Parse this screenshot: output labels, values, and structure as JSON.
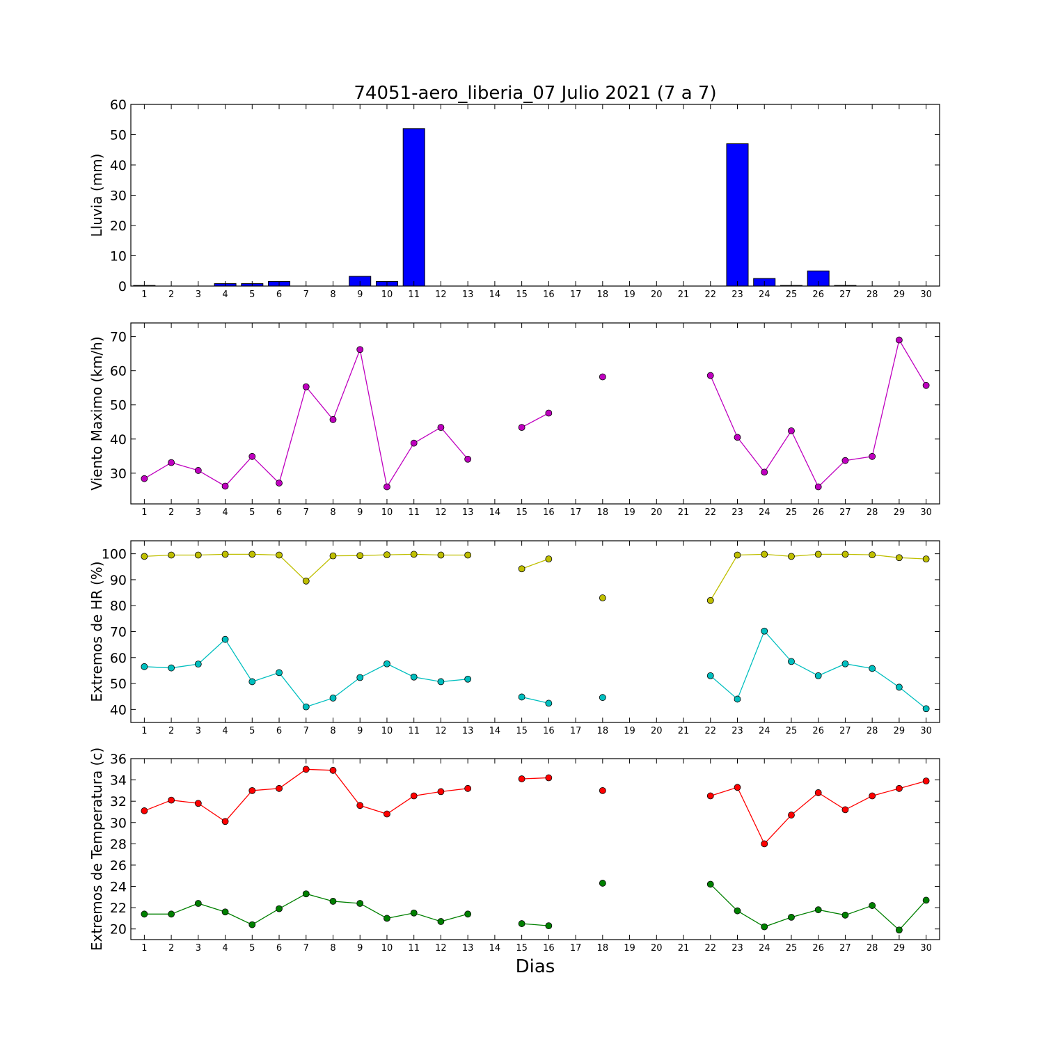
{
  "chart_data": {
    "type": "multi-panel",
    "title": "74051-aero_liberia_07 Julio 2021  (7 a 7)",
    "xlabel": "Dias",
    "x": [
      1,
      2,
      3,
      4,
      5,
      6,
      7,
      8,
      9,
      10,
      11,
      12,
      13,
      14,
      15,
      16,
      17,
      18,
      19,
      20,
      21,
      22,
      23,
      24,
      25,
      26,
      27,
      28,
      29,
      30
    ],
    "panels": [
      {
        "type": "bar",
        "ylabel": "Lluvia (mm)",
        "ylim": [
          0,
          60
        ],
        "yticks": [
          0,
          10,
          20,
          30,
          40,
          50,
          60
        ],
        "series": [
          {
            "color": "#0000ff",
            "values": [
              0.2,
              0,
              0,
              0.8,
              0.8,
              1.5,
              0,
              0,
              3.2,
              1.5,
              52,
              0,
              0,
              0,
              0,
              0,
              0,
              0,
              0,
              0,
              0,
              0,
              47,
              2.5,
              0.2,
              5,
              0.2,
              0,
              0,
              0
            ]
          }
        ]
      },
      {
        "type": "line",
        "ylabel": "Viento Maximo (km/h)",
        "ylim": [
          21,
          74
        ],
        "yticks": [
          30,
          40,
          50,
          60,
          70
        ],
        "series": [
          {
            "color": "#bf00bf",
            "values": [
              28.4,
              33.1,
              30.8,
              26.2,
              34.9,
              27.1,
              55.3,
              45.7,
              66.2,
              26,
              38.8,
              43.4,
              34.1,
              null,
              43.4,
              47.6,
              null,
              58.2,
              null,
              null,
              null,
              58.6,
              40.5,
              30.3,
              42.4,
              26,
              33.7,
              34.9,
              69,
              55.7
            ]
          }
        ]
      },
      {
        "type": "line",
        "ylabel": "Extremos de HR (%)",
        "ylim": [
          35,
          105
        ],
        "yticks": [
          40,
          50,
          60,
          70,
          80,
          90,
          100
        ],
        "series": [
          {
            "color": "#bfbf00",
            "values": [
              99,
              99.5,
              99.5,
              99.8,
              99.8,
              99.5,
              89.5,
              99.2,
              99.3,
              99.6,
              99.8,
              99.5,
              99.5,
              null,
              94.2,
              98,
              null,
              83,
              null,
              null,
              null,
              82,
              99.5,
              99.8,
              99,
              99.8,
              99.8,
              99.6,
              98.5,
              98
            ]
          },
          {
            "color": "#00bfbf",
            "values": [
              56.5,
              56,
              57.5,
              67,
              50.7,
              54.2,
              41,
              44.4,
              52.3,
              57.6,
              52.5,
              50.7,
              51.7,
              null,
              44.8,
              42.4,
              null,
              44.6,
              null,
              null,
              null,
              53,
              44,
              70.2,
              58.5,
              53,
              57.6,
              55.8,
              48.6,
              40.3
            ]
          }
        ]
      },
      {
        "type": "line",
        "ylabel": "Extremos de Temperatura (c)",
        "ylim": [
          19,
          36
        ],
        "yticks": [
          20,
          22,
          24,
          26,
          28,
          30,
          32,
          34,
          36
        ],
        "series": [
          {
            "color": "#ff0000",
            "values": [
              31.1,
              32.1,
              31.8,
              30.1,
              33,
              33.2,
              35,
              34.9,
              31.6,
              30.8,
              32.5,
              32.9,
              33.2,
              null,
              34.1,
              34.2,
              null,
              33,
              null,
              null,
              null,
              32.5,
              33.3,
              28,
              30.7,
              32.8,
              31.2,
              32.5,
              33.2,
              33.9
            ]
          },
          {
            "color": "#008000",
            "values": [
              21.4,
              21.4,
              22.4,
              21.6,
              20.4,
              21.9,
              23.3,
              22.6,
              22.4,
              21,
              21.5,
              20.7,
              21.4,
              null,
              20.5,
              20.3,
              null,
              24.3,
              null,
              null,
              null,
              24.2,
              21.7,
              20.2,
              21.1,
              21.8,
              21.3,
              22.2,
              19.9,
              22.7
            ]
          }
        ]
      }
    ]
  }
}
